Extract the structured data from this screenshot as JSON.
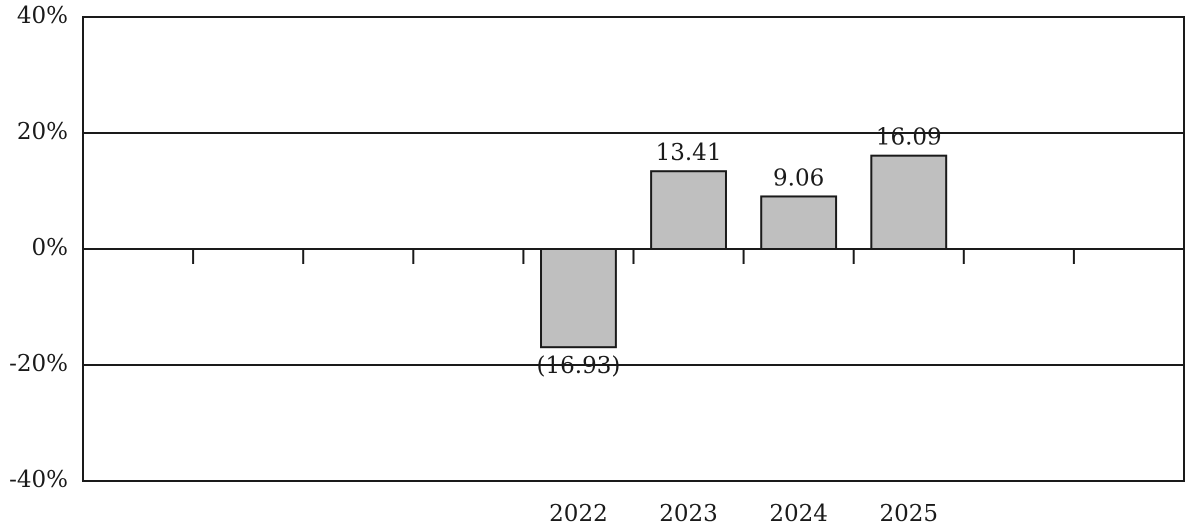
{
  "chart_data": {
    "type": "bar",
    "categories": [
      null,
      null,
      null,
      null,
      "2022",
      "2023",
      "2024",
      "2025",
      null,
      null
    ],
    "values": [
      null,
      null,
      null,
      null,
      -16.93,
      13.41,
      9.06,
      16.09,
      null,
      null
    ],
    "value_labels": [
      null,
      null,
      null,
      null,
      "(16.93)",
      "13.41",
      "9.06",
      "16.09",
      null,
      null
    ],
    "color": "#bfbfbf",
    "ylim": [
      -40,
      40
    ],
    "yticks": [
      {
        "value": -40,
        "label": "-40%"
      },
      {
        "value": -20,
        "label": "-20%"
      },
      {
        "value": 0,
        "label": "0%"
      },
      {
        "value": 20,
        "label": "20%"
      },
      {
        "value": 40,
        "label": "40%"
      }
    ],
    "grid": true
  }
}
